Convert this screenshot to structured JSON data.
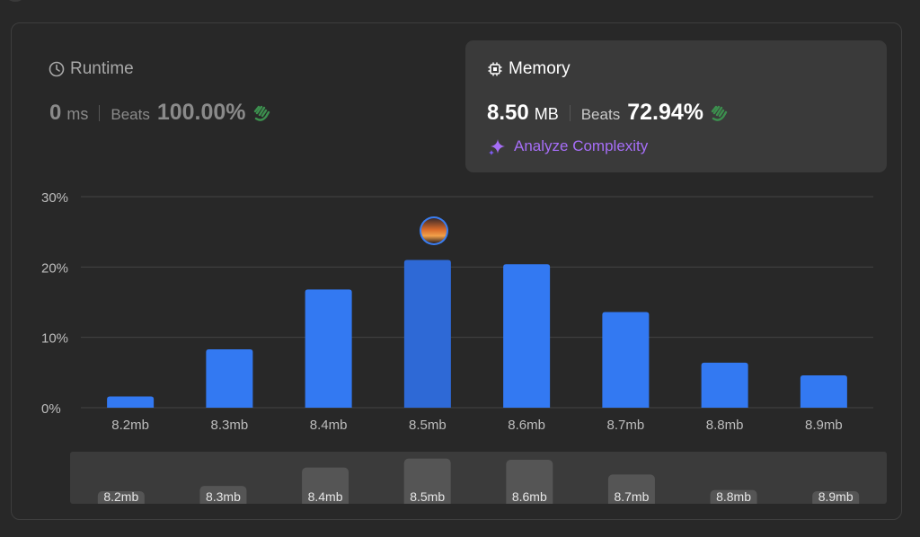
{
  "runtime": {
    "title": "Runtime",
    "value": "0",
    "unit": "ms",
    "beats_label": "Beats",
    "beats_pct": "100.00%"
  },
  "memory": {
    "title": "Memory",
    "value": "8.50",
    "unit": "MB",
    "beats_label": "Beats",
    "beats_pct": "72.94%",
    "analyze_label": "Analyze Complexity"
  },
  "colors": {
    "bar": "#3379f2",
    "bar_selected": "#2e69d6",
    "grid": "#444444",
    "axis_text": "#bdbdbd",
    "mini_bar": "#555555",
    "accent_purple": "#a66ef7",
    "clap_green": "#3c8f4e"
  },
  "chart_data": {
    "type": "bar",
    "categories": [
      "8.2mb",
      "8.3mb",
      "8.4mb",
      "8.5mb",
      "8.6mb",
      "8.7mb",
      "8.8mb",
      "8.9mb"
    ],
    "values": [
      1.6,
      8.3,
      16.8,
      21.0,
      20.4,
      13.6,
      6.4,
      4.6
    ],
    "yticks": [
      "0%",
      "10%",
      "20%",
      "30%"
    ],
    "ylim": [
      0,
      30
    ],
    "selected_index": 3,
    "grid": true
  }
}
